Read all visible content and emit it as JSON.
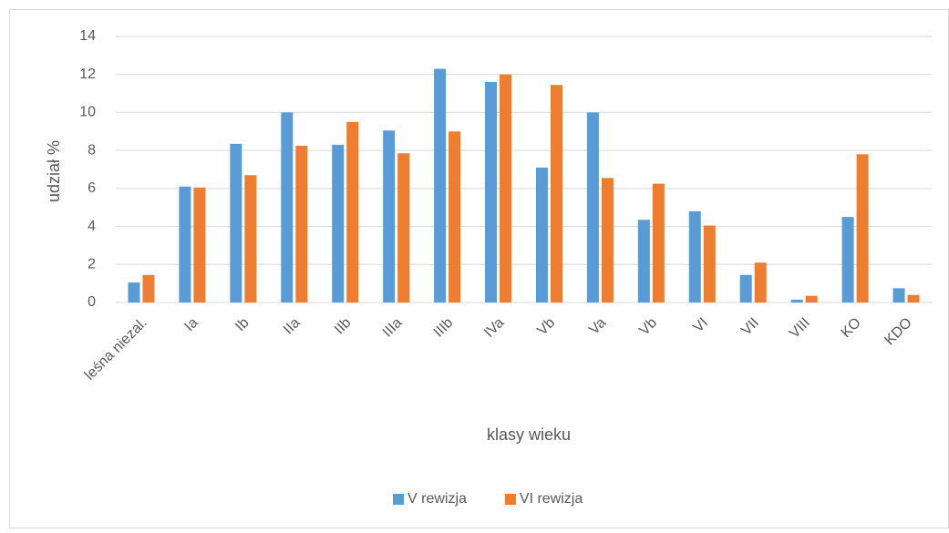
{
  "chart_data": {
    "type": "bar",
    "categories": [
      "leśna niezal.",
      "Ia",
      "Ib",
      "IIa",
      "IIb",
      "IIIa",
      "IIIb",
      "IVa",
      "Vb",
      "Va",
      "Vb",
      "VI",
      "VII",
      "VIII",
      "KO",
      "KDO"
    ],
    "series": [
      {
        "name": "V rewizja",
        "color": "#5b9bd5",
        "values": [
          1.05,
          6.1,
          8.35,
          10.0,
          8.3,
          9.05,
          12.3,
          11.6,
          7.1,
          10.0,
          4.35,
          4.8,
          1.45,
          0.15,
          4.5,
          0.75
        ]
      },
      {
        "name": "VI rewizja",
        "color": "#ed7d31",
        "values": [
          1.45,
          6.05,
          6.7,
          8.25,
          9.5,
          7.85,
          9.0,
          12.0,
          11.45,
          6.55,
          6.25,
          4.05,
          2.1,
          0.35,
          7.8,
          0.4
        ]
      }
    ],
    "xlabel": "klasy wieku",
    "ylabel": "udział %",
    "ylim": [
      0,
      14
    ],
    "yticks": [
      0,
      2,
      4,
      6,
      8,
      10,
      12,
      14
    ],
    "grid": true,
    "legend": "bottom"
  }
}
